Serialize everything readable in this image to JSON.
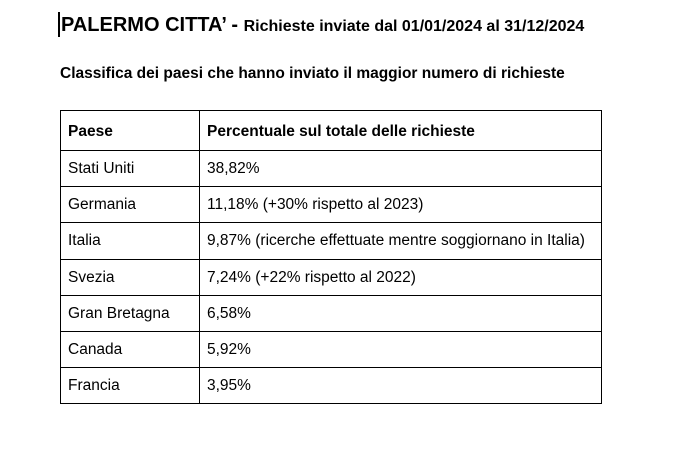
{
  "header": {
    "city": "PALERMO CITTA’",
    "separator": " - ",
    "period": "Richieste inviate dal 01/01/2024 al 31/12/2024"
  },
  "subtitle": "Classifica dei paesi che hanno inviato il maggior numero di richieste",
  "table": {
    "columns": [
      "Paese",
      "Percentuale sul totale delle richieste"
    ],
    "rows": [
      {
        "country": "Stati Uniti",
        "value": "38,82%"
      },
      {
        "country": "Germania",
        "value": "11,18% (+30% rispetto al 2023)"
      },
      {
        "country": "Italia",
        "value": "9,87% (ricerche effettuate mentre soggiornano in Italia)"
      },
      {
        "country": "Svezia",
        "value": "7,24% (+22% rispetto al 2022)"
      },
      {
        "country": "Gran Bretagna",
        "value": "6,58%"
      },
      {
        "country": "Canada",
        "value": "5,92%"
      },
      {
        "country": "Francia",
        "value": "3,95%"
      }
    ]
  }
}
